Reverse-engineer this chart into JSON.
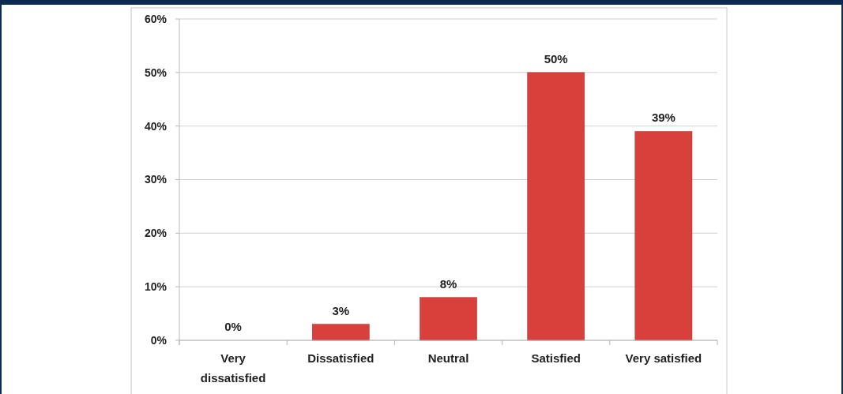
{
  "chart_data": {
    "type": "bar",
    "categories": [
      "Very dissatisfied",
      "Dissatisfied",
      "Neutral",
      "Satisfied",
      "Very satisfied"
    ],
    "values": [
      0,
      3,
      8,
      50,
      39
    ],
    "value_labels": [
      "0%",
      "3%",
      "8%",
      "50%",
      "39%"
    ],
    "color": "#d8403c",
    "ylim": [
      0,
      60
    ],
    "yticks": [
      {
        "value": 0,
        "label": "0%"
      },
      {
        "value": 10,
        "label": "10%"
      },
      {
        "value": 20,
        "label": "20%"
      },
      {
        "value": 30,
        "label": "30%"
      },
      {
        "value": 40,
        "label": "40%"
      },
      {
        "value": 50,
        "label": "50%"
      },
      {
        "value": 60,
        "label": "60%"
      }
    ],
    "grid": "y"
  }
}
